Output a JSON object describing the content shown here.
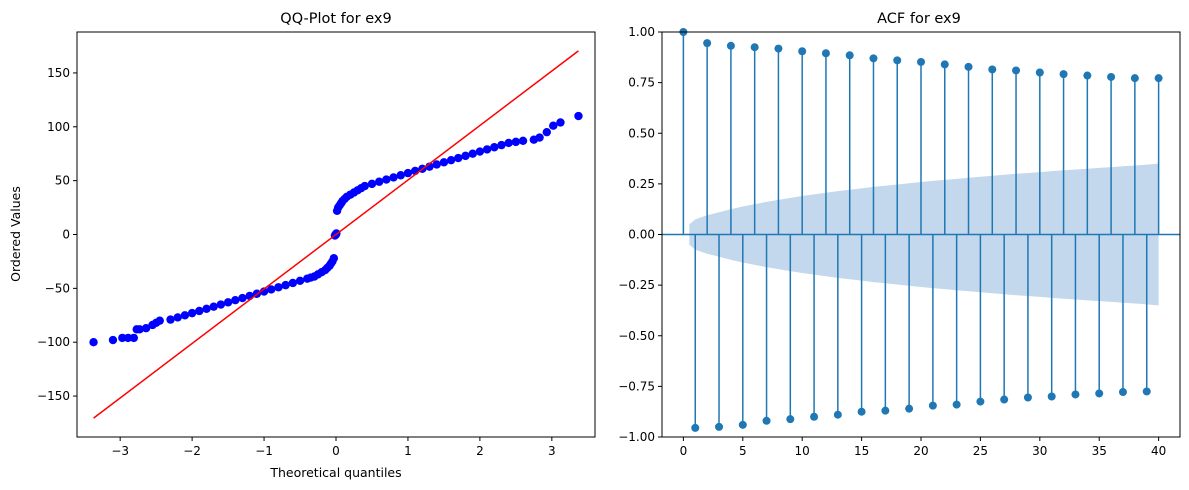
{
  "chart_data": [
    {
      "type": "scatter",
      "title": "QQ-Plot for ex9",
      "xlabel": "Theoretical quantiles",
      "ylabel": "Ordered Values",
      "xlim": [
        -3.6,
        3.6
      ],
      "ylim": [
        -188,
        188
      ],
      "xticks": [
        -3,
        -2,
        -1,
        0,
        1,
        2,
        3
      ],
      "yticks": [
        -150,
        -100,
        -50,
        0,
        50,
        100,
        150
      ],
      "xtick_labels": [
        "−3",
        "−2",
        "−1",
        "0",
        "1",
        "2",
        "3"
      ],
      "ytick_labels": [
        "−150",
        "−100",
        "−50",
        "0",
        "50",
        "100",
        "150"
      ],
      "marker_color": "#0000ff",
      "line_color": "#ff0000",
      "reference_line": {
        "x": [
          -3.37,
          3.37
        ],
        "y": [
          -170.5,
          170.5
        ]
      },
      "points": {
        "x": [
          -3.37,
          -3.1,
          -2.97,
          -2.89,
          -2.81,
          -2.77,
          -2.73,
          -2.64,
          -2.55,
          -2.5,
          -2.45,
          -2.3,
          -2.2,
          -2.1,
          -2.0,
          -1.9,
          -1.8,
          -1.7,
          -1.6,
          -1.5,
          -1.4,
          -1.3,
          -1.2,
          -1.1,
          -1.0,
          -0.9,
          -0.8,
          -0.7,
          -0.6,
          -0.5,
          -0.4,
          -0.35,
          -0.3,
          -0.25,
          -0.2,
          -0.15,
          -0.12,
          -0.09,
          -0.07,
          -0.05,
          -0.03,
          -0.015,
          -0.005,
          0.0,
          0.005,
          0.015,
          0.03,
          0.05,
          0.07,
          0.09,
          0.12,
          0.15,
          0.2,
          0.25,
          0.3,
          0.35,
          0.4,
          0.5,
          0.6,
          0.7,
          0.8,
          0.9,
          1.0,
          1.1,
          1.2,
          1.3,
          1.4,
          1.5,
          1.6,
          1.7,
          1.8,
          1.9,
          2.0,
          2.1,
          2.2,
          2.3,
          2.4,
          2.5,
          2.6,
          2.75,
          2.83,
          2.93,
          3.02,
          3.12,
          3.37
        ],
        "y": [
          -100,
          -98,
          -96,
          -96,
          -96,
          -88,
          -88,
          -87,
          -84,
          -82,
          -80,
          -79,
          -77,
          -75,
          -73,
          -71,
          -69,
          -67,
          -65,
          -63,
          -61,
          -59,
          -57,
          -55,
          -53,
          -51,
          -49,
          -47,
          -45,
          -43,
          -41,
          -40,
          -39,
          -37,
          -35,
          -33,
          -31,
          -29,
          -27,
          -25,
          -22,
          -1,
          0,
          0,
          1,
          22,
          25,
          27,
          29,
          31,
          33,
          35,
          37,
          39,
          41,
          43,
          45,
          47,
          49,
          51,
          53,
          55,
          57,
          59,
          61,
          63,
          65,
          67,
          69,
          71,
          73,
          75,
          77,
          79,
          81,
          83,
          85,
          86,
          87,
          88,
          90,
          95,
          101,
          104,
          110
        ]
      }
    },
    {
      "type": "stem",
      "title": "ACF for ex9",
      "xlim": [
        -1.8,
        41.8
      ],
      "ylim": [
        -1.0,
        1.0
      ],
      "xticks": [
        0,
        5,
        10,
        15,
        20,
        25,
        30,
        35,
        40
      ],
      "yticks": [
        -1.0,
        -0.75,
        -0.5,
        -0.25,
        0.0,
        0.25,
        0.5,
        0.75,
        1.0
      ],
      "xtick_labels": [
        "0",
        "5",
        "10",
        "15",
        "20",
        "25",
        "30",
        "35",
        "40"
      ],
      "ytick_labels": [
        "−1.00",
        "−0.75",
        "−0.50",
        "−0.25",
        "0.00",
        "0.25",
        "0.50",
        "0.75",
        "1.00"
      ],
      "stem_color": "#1f77b4",
      "band_color": "#c3d8ec",
      "lags": [
        0,
        1,
        2,
        3,
        4,
        5,
        6,
        7,
        8,
        9,
        10,
        11,
        12,
        13,
        14,
        15,
        16,
        17,
        18,
        19,
        20,
        21,
        22,
        23,
        24,
        25,
        26,
        27,
        28,
        29,
        30,
        31,
        32,
        33,
        34,
        35,
        36,
        37,
        38,
        39,
        40
      ],
      "values": [
        1.0,
        -0.955,
        0.945,
        -0.95,
        0.932,
        -0.94,
        0.925,
        -0.92,
        0.918,
        -0.912,
        0.905,
        -0.9,
        0.895,
        -0.89,
        0.885,
        -0.875,
        0.87,
        -0.87,
        0.86,
        -0.86,
        0.852,
        -0.845,
        0.84,
        -0.84,
        0.828,
        -0.825,
        0.815,
        -0.815,
        0.81,
        -0.805,
        0.8,
        -0.8,
        0.792,
        -0.79,
        0.785,
        -0.785,
        0.778,
        -0.778,
        0.772,
        -0.775,
        0.772
      ],
      "confidence_band": [
        0.05,
        0.075,
        0.095,
        0.11,
        0.125,
        0.138,
        0.15,
        0.161,
        0.171,
        0.181,
        0.19,
        0.198,
        0.206,
        0.214,
        0.221,
        0.228,
        0.235,
        0.241,
        0.247,
        0.253,
        0.259,
        0.265,
        0.27,
        0.275,
        0.28,
        0.285,
        0.29,
        0.295,
        0.3,
        0.304,
        0.308,
        0.313,
        0.317,
        0.321,
        0.325,
        0.329,
        0.333,
        0.337,
        0.341,
        0.345,
        0.35
      ]
    }
  ]
}
